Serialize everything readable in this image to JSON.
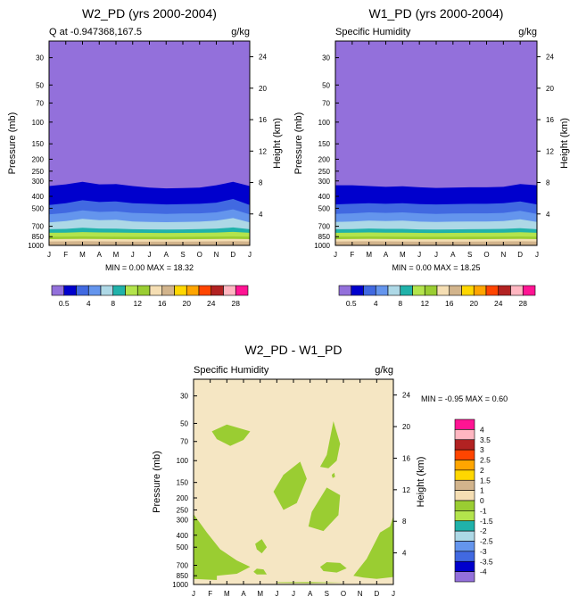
{
  "colors": {
    "fill_purple": "#9370DB",
    "dark_blue": "#0000CD",
    "royal_blue": "#4169E1",
    "cornflower": "#6495ED",
    "light_blue": "#ADD8E6",
    "teal": "#20B2AA",
    "light_green": "#B3E44C",
    "olive_green": "#9ACD32",
    "wheat": "#F5DEB3",
    "tan": "#D2B48C",
    "gold": "#FFD700",
    "orange": "#FFA500",
    "orange_red": "#FF4500",
    "firebrick": "#B22222",
    "pink": "#FFB6C1",
    "magenta": "#FF1493",
    "diff_background": "#F5E6C3",
    "diff_green": "#9ACD32"
  },
  "chart_data": [
    {
      "id": "w2",
      "type": "heatmap",
      "title": "W2_PD (yrs 2000-2004)",
      "subtitle_left": "Q at -0.947368,167.5",
      "subtitle_right": "g/kg",
      "xlabel": "",
      "ylabel": "Pressure (mb)",
      "ylabel_right": "Height (km)",
      "x_ticks": [
        "J",
        "F",
        "M",
        "A",
        "M",
        "J",
        "J",
        "A",
        "S",
        "O",
        "N",
        "D",
        "J"
      ],
      "y_ticks": [
        "30",
        "50",
        "70",
        "100",
        "150",
        "200",
        "250",
        "300",
        "400",
        "500",
        "700",
        "850",
        "1000"
      ],
      "y_range_mb": [
        1000,
        22
      ],
      "height_ticks": [
        "24",
        "20",
        "16",
        "12",
        "8",
        "4"
      ],
      "height_range_km": [
        0,
        26
      ],
      "min_label": "MIN = ",
      "min_value": "0.00",
      "max_label": "MAX = ",
      "max_value": "18.32",
      "colorbar_labels": [
        "0.5",
        "4",
        "8",
        "12",
        "16",
        "20",
        "24",
        "28"
      ],
      "colorbar_levels": [
        0.5,
        2,
        4,
        6,
        8,
        10,
        12,
        14,
        16,
        18,
        20,
        22,
        24,
        26,
        28
      ],
      "contour_boundary_mb": {
        "months": [
          "J",
          "F",
          "M",
          "A",
          "M",
          "J",
          "J",
          "A",
          "S",
          "O",
          "N",
          "D",
          "J"
        ],
        "q_0_5": [
          330,
          320,
          305,
          320,
          318,
          330,
          340,
          345,
          343,
          340,
          325,
          305,
          330
        ],
        "q_2": [
          470,
          455,
          430,
          445,
          440,
          455,
          460,
          465,
          462,
          460,
          450,
          420,
          470
        ],
        "q_4": [
          560,
          545,
          520,
          535,
          530,
          545,
          550,
          555,
          552,
          550,
          540,
          510,
          560
        ],
        "q_6": [
          650,
          635,
          610,
          625,
          620,
          640,
          645,
          648,
          646,
          642,
          630,
          600,
          650
        ],
        "q_8": [
          740,
          735,
          720,
          730,
          732,
          740,
          742,
          744,
          742,
          738,
          732,
          715,
          740
        ],
        "q_10": [
          790,
          788,
          780,
          785,
          786,
          790,
          792,
          793,
          792,
          790,
          786,
          778,
          790
        ],
        "q_12": [
          850,
          848,
          845,
          848,
          850,
          852,
          852,
          853,
          852,
          850,
          848,
          845,
          850
        ],
        "q_14": [
          890,
          888,
          885,
          888,
          890,
          892,
          892,
          893,
          892,
          890,
          888,
          885,
          890
        ],
        "q_16": [
          930,
          928,
          925,
          928,
          930,
          932,
          932,
          933,
          932,
          930,
          928,
          925,
          930
        ]
      }
    },
    {
      "id": "w1",
      "type": "heatmap",
      "title": "W1_PD (yrs 2000-2004)",
      "subtitle_left": "Specific Humidity",
      "subtitle_right": "g/kg",
      "xlabel": "",
      "ylabel": "Pressure (mb)",
      "ylabel_right": "Height (km)",
      "x_ticks": [
        "J",
        "F",
        "M",
        "A",
        "M",
        "J",
        "J",
        "A",
        "S",
        "O",
        "N",
        "D",
        "J"
      ],
      "y_ticks": [
        "30",
        "50",
        "70",
        "100",
        "150",
        "200",
        "250",
        "300",
        "400",
        "500",
        "700",
        "850",
        "1000"
      ],
      "y_range_mb": [
        1000,
        22
      ],
      "height_ticks": [
        "24",
        "20",
        "16",
        "12",
        "8",
        "4"
      ],
      "height_range_km": [
        0,
        26
      ],
      "min_label": "MIN = ",
      "min_value": "0.00",
      "max_label": "MAX = ",
      "max_value": "18.25",
      "colorbar_labels": [
        "0.5",
        "4",
        "8",
        "12",
        "16",
        "20",
        "24",
        "28"
      ],
      "colorbar_levels": [
        0.5,
        2,
        4,
        6,
        8,
        10,
        12,
        14,
        16,
        18,
        20,
        22,
        24,
        26,
        28
      ],
      "contour_boundary_mb": {
        "months": [
          "J",
          "F",
          "M",
          "A",
          "M",
          "J",
          "J",
          "A",
          "S",
          "O",
          "N",
          "D",
          "J"
        ],
        "q_0_5": [
          325,
          325,
          330,
          335,
          332,
          338,
          342,
          340,
          338,
          338,
          335,
          318,
          325
        ],
        "q_2": [
          465,
          460,
          455,
          460,
          455,
          462,
          465,
          462,
          460,
          460,
          455,
          440,
          465
        ],
        "q_4": [
          555,
          550,
          540,
          545,
          540,
          550,
          555,
          552,
          550,
          550,
          545,
          525,
          555
        ],
        "q_6": [
          645,
          640,
          630,
          635,
          630,
          642,
          645,
          642,
          640,
          640,
          635,
          615,
          645
        ],
        "q_8": [
          740,
          738,
          730,
          735,
          735,
          742,
          744,
          742,
          740,
          738,
          735,
          725,
          740
        ],
        "q_10": [
          790,
          788,
          785,
          788,
          788,
          792,
          793,
          792,
          790,
          790,
          788,
          782,
          790
        ],
        "q_12": [
          850,
          848,
          846,
          848,
          850,
          852,
          852,
          852,
          851,
          850,
          848,
          846,
          850
        ],
        "q_14": [
          890,
          888,
          886,
          888,
          890,
          892,
          892,
          892,
          891,
          890,
          888,
          886,
          890
        ],
        "q_16": [
          930,
          928,
          926,
          928,
          930,
          932,
          932,
          932,
          931,
          930,
          928,
          926,
          930
        ]
      }
    },
    {
      "id": "diff",
      "type": "heatmap",
      "title": "W2_PD - W1_PD",
      "subtitle_left": "Specific Humidity",
      "subtitle_right": "g/kg",
      "xlabel": "",
      "ylabel": "Pressure (mb)",
      "ylabel_right": "Height (km)",
      "x_ticks": [
        "J",
        "F",
        "M",
        "A",
        "M",
        "J",
        "J",
        "A",
        "S",
        "O",
        "N",
        "D",
        "J"
      ],
      "y_ticks": [
        "30",
        "50",
        "70",
        "100",
        "150",
        "200",
        "250",
        "300",
        "400",
        "500",
        "700",
        "850",
        "1000"
      ],
      "y_range_mb": [
        1000,
        22
      ],
      "height_ticks": [
        "24",
        "20",
        "16",
        "12",
        "8",
        "4"
      ],
      "height_range_km": [
        0,
        26
      ],
      "min_label": "MIN = ",
      "min_value": "-0.95",
      "max_label": "MAX = ",
      "max_value": "0.60",
      "colorbar_labels": [
        "4",
        "3.5",
        "3",
        "2.5",
        "2",
        "1.5",
        "1",
        "0",
        "-1",
        "-1.5",
        "-2",
        "-2.5",
        "-3",
        "-3.5",
        "-4"
      ],
      "colorbar_levels": [
        4,
        3.5,
        3,
        2.5,
        2,
        1.5,
        1,
        0,
        -1,
        -1.5,
        -2,
        -2.5,
        -3,
        -3.5,
        -4
      ],
      "negative_regions": [
        {
          "name": "region-fm-upper",
          "points": [
            [
              1.1,
              58
            ],
            [
              2.0,
              51
            ],
            [
              3.4,
              58
            ],
            [
              3.0,
              68
            ],
            [
              2.2,
              76
            ],
            [
              1.4,
              67
            ]
          ]
        },
        {
          "name": "region-jun-mid",
          "points": [
            [
              4.8,
              178
            ],
            [
              5.4,
              130
            ],
            [
              6.4,
              102
            ],
            [
              6.8,
              140
            ],
            [
              6.2,
              220
            ],
            [
              5.4,
              250
            ]
          ]
        },
        {
          "name": "region-sep-upper",
          "points": [
            [
              7.6,
              112
            ],
            [
              8.0,
              90
            ],
            [
              8.4,
              48
            ],
            [
              8.8,
              73
            ],
            [
              8.6,
              100
            ],
            [
              8.1,
              115
            ]
          ]
        },
        {
          "name": "region-sep-mid",
          "points": [
            [
              6.9,
              340
            ],
            [
              7.1,
              260
            ],
            [
              8.0,
              165
            ],
            [
              8.8,
              190
            ],
            [
              8.7,
              275
            ],
            [
              7.8,
              370
            ]
          ]
        },
        {
          "name": "region-low-jan",
          "points": [
            [
              0,
              270
            ],
            [
              0.8,
              380
            ],
            [
              1.6,
              520
            ],
            [
              2.6,
              640
            ],
            [
              3.4,
              720
            ],
            [
              2.6,
              820
            ],
            [
              1.4,
              850
            ],
            [
              1.4,
              920
            ],
            [
              0,
              900
            ]
          ]
        },
        {
          "name": "region-apr-dot",
          "points": [
            [
              3.7,
              470
            ],
            [
              4.1,
              430
            ],
            [
              4.4,
              500
            ],
            [
              4.1,
              560
            ],
            [
              3.8,
              520
            ]
          ]
        },
        {
          "name": "region-jun-low",
          "points": [
            [
              3.6,
              790
            ],
            [
              3.8,
              745
            ],
            [
              4.2,
              755
            ],
            [
              4.4,
              830
            ],
            [
              3.8,
              830
            ]
          ]
        },
        {
          "name": "region-oct-low",
          "points": [
            [
              7.6,
              720
            ],
            [
              8.0,
              660
            ],
            [
              8.8,
              670
            ],
            [
              9.2,
              740
            ],
            [
              8.6,
              800
            ],
            [
              7.8,
              780
            ]
          ]
        },
        {
          "name": "region-dec-low",
          "points": [
            [
              9.6,
              850
            ],
            [
              10.4,
              620
            ],
            [
              11.2,
              380
            ],
            [
              11.8,
              340
            ],
            [
              12,
              280
            ],
            [
              12,
              870
            ],
            [
              11.0,
              900
            ],
            [
              10.2,
              880
            ]
          ]
        },
        {
          "name": "region-nov-speck",
          "points": [
            [
              8.3,
              130
            ],
            [
              8.45,
              125
            ],
            [
              8.5,
              135
            ],
            [
              8.35,
              138
            ]
          ]
        },
        {
          "name": "region-bottom-strip",
          "points": [
            [
              5,
              960
            ],
            [
              7,
              955
            ],
            [
              9,
              965
            ],
            [
              7,
              975
            ],
            [
              5,
              970
            ]
          ]
        }
      ]
    }
  ]
}
